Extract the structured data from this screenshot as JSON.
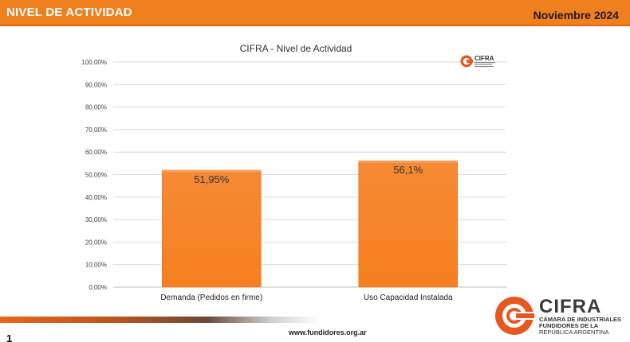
{
  "header": {
    "title": "NIVEL DE ACTIVIDAD",
    "date": "Noviembre 2024"
  },
  "chart_data": {
    "type": "bar",
    "title": "CIFRA - Nivel de Actividad",
    "categories": [
      "Demanda (Pedidos en firme)",
      "Uso Capacidad Instalada"
    ],
    "values": [
      51.95,
      56.1
    ],
    "data_labels": [
      "51,95%",
      "56,1%"
    ],
    "y_tick_labels": [
      "0,00%",
      "10,00%",
      "20,00%",
      "30,00%",
      "40,00%",
      "50,00%",
      "60,00%",
      "70,00%",
      "80,00%",
      "90,00%",
      "100,00%"
    ],
    "ylim": [
      0,
      100
    ],
    "grid": true,
    "bar_color": "#f7852a"
  },
  "mini_logo": {
    "text": "CIFRA"
  },
  "footer": {
    "page_number": "1",
    "website": "www.fundidores.org.ar"
  },
  "logo": {
    "name": "CIFRA",
    "line1": "CÁMARA DE INDUSTRIALES",
    "line2": "FUNDIDORES DE LA",
    "line3": "REPÚBLICA ARGENTINA"
  },
  "colors": {
    "accent": "#f07f1d",
    "bar": "#f7852a",
    "logo_orange": "#e8571f"
  }
}
